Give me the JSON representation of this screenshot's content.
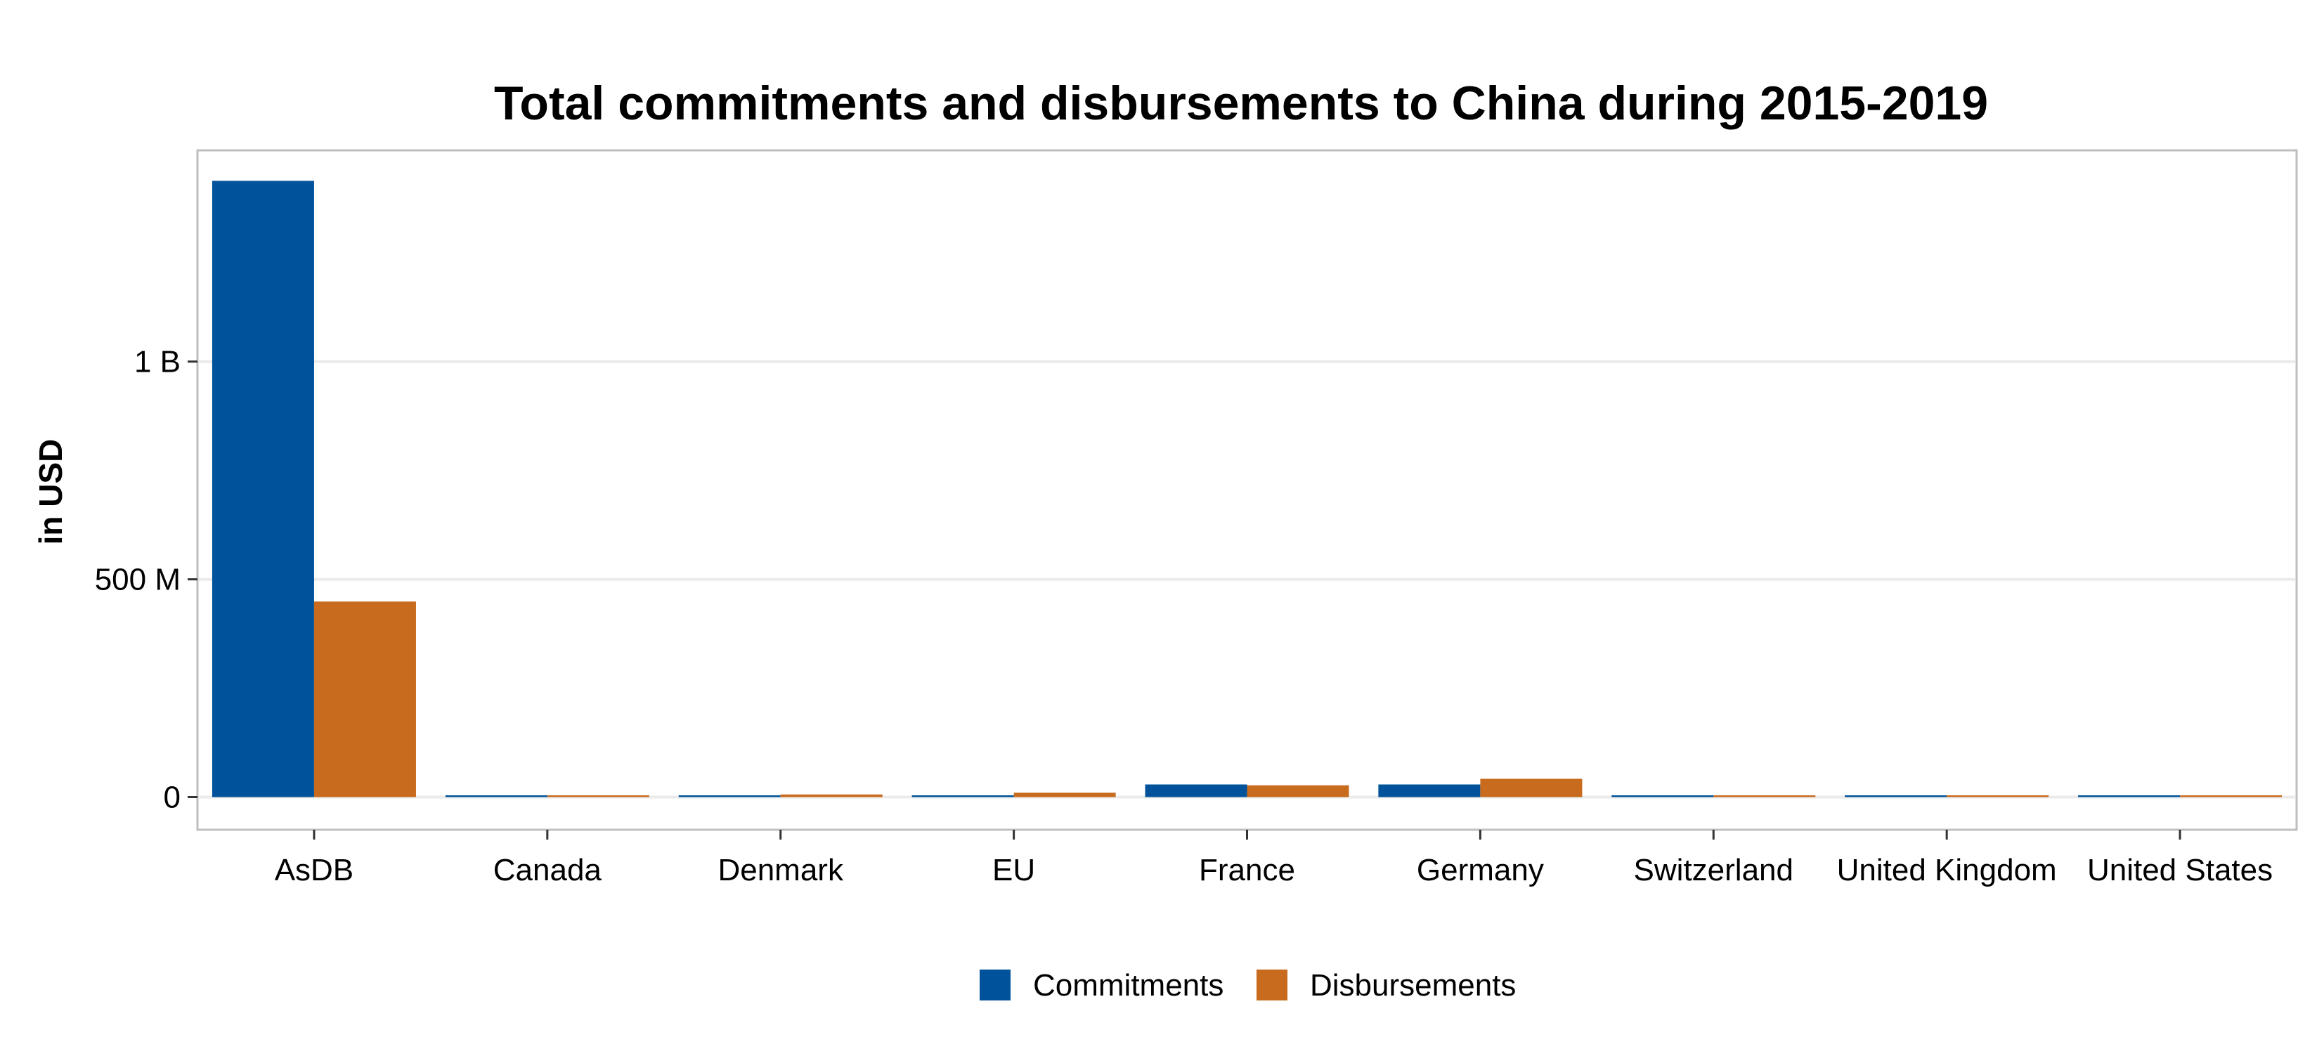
{
  "chart_data": {
    "type": "bar",
    "title": "Total commitments and disbursements to China during 2015-2019",
    "xlabel": "",
    "ylabel": "in USD",
    "categories": [
      "AsDB",
      "Canada",
      "Denmark",
      "EU",
      "France",
      "Germany",
      "Switzerland",
      "United Kingdom",
      "United States"
    ],
    "series": [
      {
        "name": "Commitments",
        "color": "#00539B",
        "values": [
          1415000000,
          2000000,
          0,
          0,
          29000000,
          29000000,
          1000000,
          2000000,
          2000000
        ]
      },
      {
        "name": "Disbursements",
        "color": "#C86B1E",
        "values": [
          449000000,
          2000000,
          6000000,
          10000000,
          27000000,
          42000000,
          1000000,
          2000000,
          2000000
        ]
      }
    ],
    "yticks": [
      {
        "value": 0,
        "label": "0"
      },
      {
        "value": 500000000,
        "label": "500 M"
      },
      {
        "value": 1000000000,
        "label": "1 B"
      }
    ],
    "ylim": [
      -75000000,
      1485000000
    ],
    "grid": true,
    "legend_position": "bottom"
  }
}
